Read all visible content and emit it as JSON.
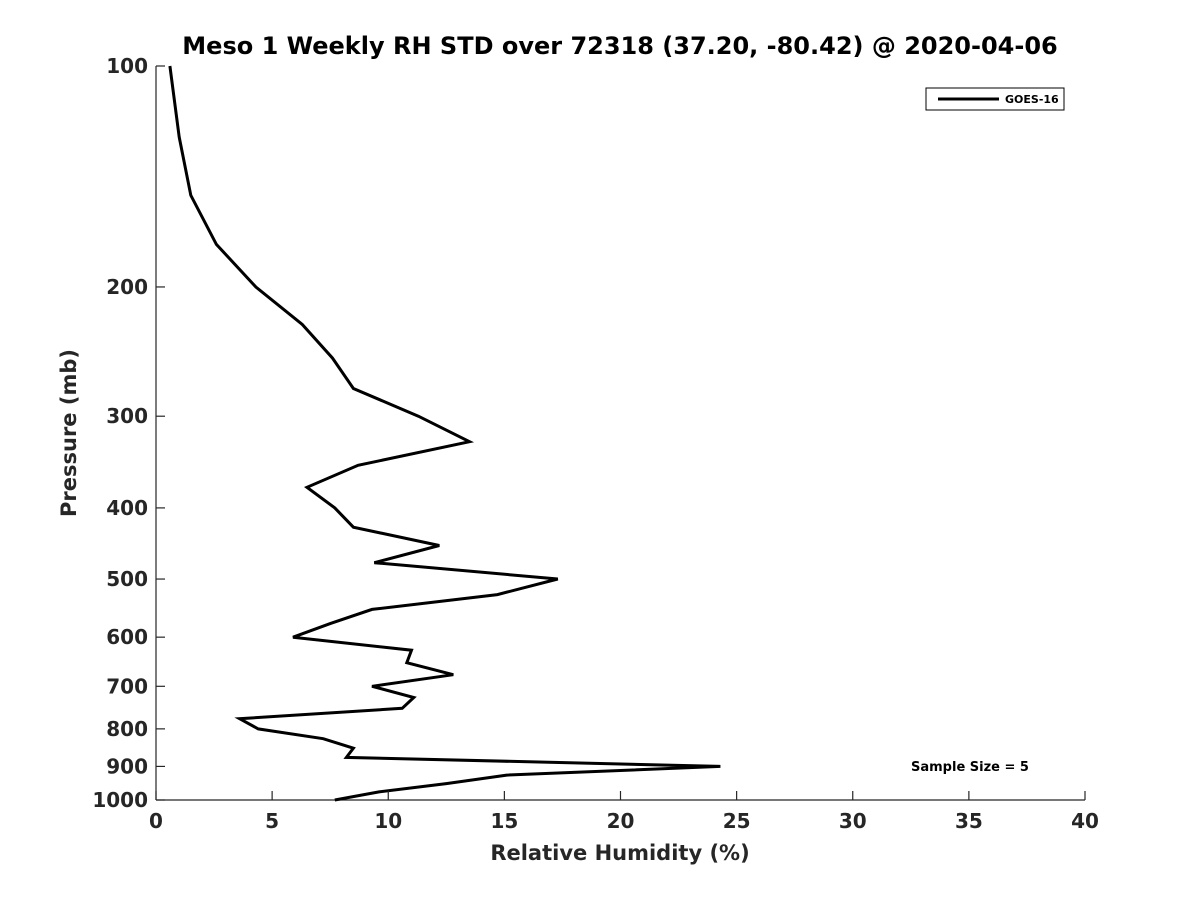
{
  "chart_data": {
    "type": "line",
    "title": "Meso 1 Weekly RH STD over 72318 (37.20, -80.42) @ 2020-04-06",
    "xlabel": "Relative Humidity (%)",
    "ylabel": "Pressure (mb)",
    "xlim": [
      0,
      40
    ],
    "ylim": [
      100,
      1000
    ],
    "y_scale": "log",
    "y_reversed": true,
    "grid": false,
    "legend_position": "top-right",
    "x_ticks": [
      0,
      5,
      10,
      15,
      20,
      25,
      30,
      35,
      40
    ],
    "y_ticks": [
      100,
      200,
      300,
      400,
      500,
      600,
      700,
      800,
      900,
      1000
    ],
    "annotation": "Sample Size = 5",
    "series": [
      {
        "name": "GOES-16",
        "color": "#000000",
        "points": [
          {
            "x": 0.6,
            "y": 100
          },
          {
            "x": 1.0,
            "y": 125
          },
          {
            "x": 1.5,
            "y": 150
          },
          {
            "x": 2.6,
            "y": 175
          },
          {
            "x": 4.3,
            "y": 200
          },
          {
            "x": 6.3,
            "y": 225
          },
          {
            "x": 7.6,
            "y": 250
          },
          {
            "x": 8.5,
            "y": 275
          },
          {
            "x": 11.3,
            "y": 300
          },
          {
            "x": 13.5,
            "y": 325
          },
          {
            "x": 8.7,
            "y": 350
          },
          {
            "x": 6.5,
            "y": 375
          },
          {
            "x": 7.7,
            "y": 400
          },
          {
            "x": 8.5,
            "y": 425
          },
          {
            "x": 12.2,
            "y": 450
          },
          {
            "x": 9.4,
            "y": 475
          },
          {
            "x": 17.3,
            "y": 500
          },
          {
            "x": 14.7,
            "y": 525
          },
          {
            "x": 9.3,
            "y": 550
          },
          {
            "x": 7.5,
            "y": 575
          },
          {
            "x": 5.9,
            "y": 600
          },
          {
            "x": 11.0,
            "y": 625
          },
          {
            "x": 10.8,
            "y": 650
          },
          {
            "x": 12.8,
            "y": 675
          },
          {
            "x": 9.3,
            "y": 700
          },
          {
            "x": 11.1,
            "y": 725
          },
          {
            "x": 10.6,
            "y": 750
          },
          {
            "x": 3.6,
            "y": 775
          },
          {
            "x": 4.4,
            "y": 800
          },
          {
            "x": 7.2,
            "y": 825
          },
          {
            "x": 8.5,
            "y": 850
          },
          {
            "x": 8.2,
            "y": 875
          },
          {
            "x": 24.3,
            "y": 900
          },
          {
            "x": 15.1,
            "y": 925
          },
          {
            "x": 12.5,
            "y": 950
          },
          {
            "x": 9.6,
            "y": 975
          },
          {
            "x": 7.7,
            "y": 1000
          }
        ]
      }
    ]
  }
}
